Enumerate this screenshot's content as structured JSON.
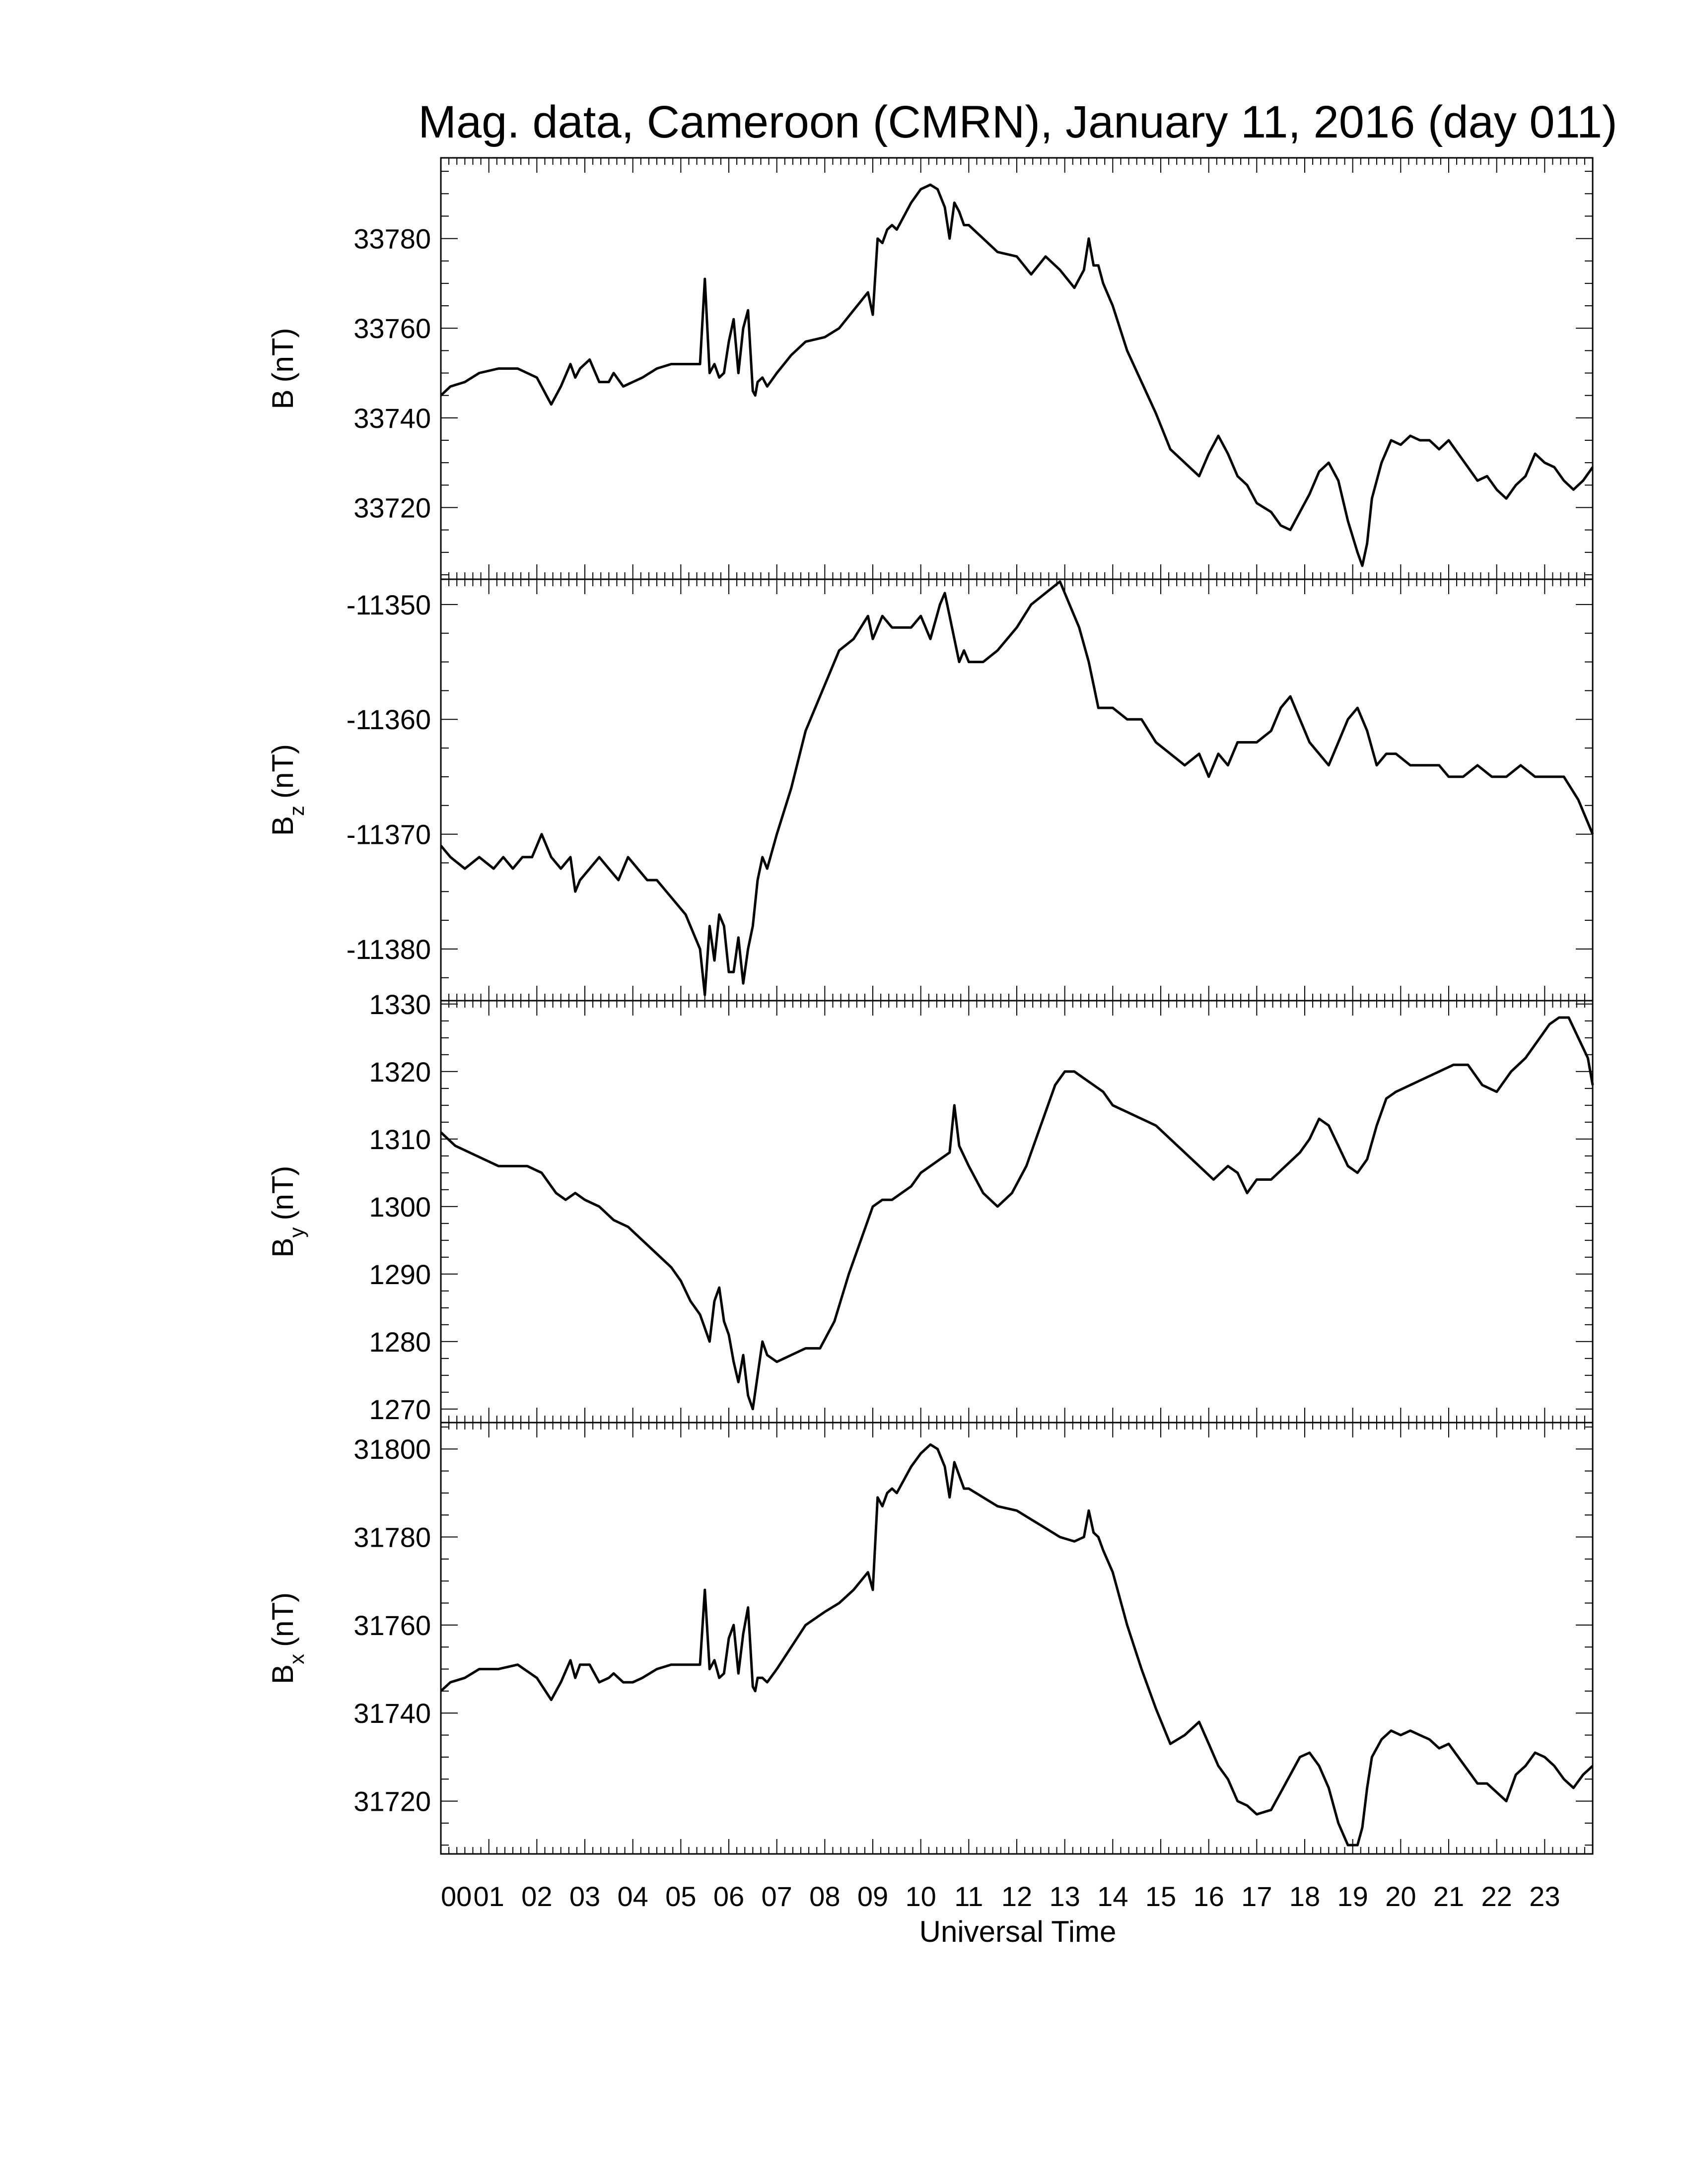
{
  "figure": {
    "title": "Mag. data, Cameroon (CMRN), January 11, 2016 (day 011)",
    "xlabel": "Universal Time"
  },
  "chart_data": [
    {
      "type": "line",
      "ylabel": "B (nT)",
      "ylabel_main": "B",
      "ylabel_sub": "",
      "ylabel_unit": "(nT)",
      "ylim": [
        33704,
        33798
      ],
      "yticks": [
        33720,
        33740,
        33760,
        33780
      ],
      "xlim": [
        0,
        24
      ],
      "series": [
        {
          "x": [
            0,
            0.2,
            0.5,
            0.8,
            1.2,
            1.6,
            2.0,
            2.3,
            2.5,
            2.7,
            2.8,
            2.9,
            3.1,
            3.3,
            3.5,
            3.6,
            3.8,
            4.0,
            4.2,
            4.5,
            4.8,
            5.0,
            5.2,
            5.4,
            5.5,
            5.6,
            5.7,
            5.8,
            5.9,
            6.0,
            6.1,
            6.2,
            6.3,
            6.4,
            6.5,
            6.55,
            6.6,
            6.7,
            6.8,
            7.0,
            7.3,
            7.6,
            8.0,
            8.3,
            8.6,
            8.9,
            9.0,
            9.1,
            9.2,
            9.3,
            9.4,
            9.5,
            9.6,
            9.8,
            10.0,
            10.2,
            10.35,
            10.5,
            10.6,
            10.7,
            10.8,
            10.9,
            11.0,
            11.3,
            11.6,
            12.0,
            12.3,
            12.6,
            12.9,
            13.2,
            13.4,
            13.5,
            13.6,
            13.7,
            13.8,
            14.0,
            14.3,
            14.6,
            14.9,
            15.2,
            15.5,
            15.8,
            16.0,
            16.2,
            16.4,
            16.6,
            16.8,
            17.0,
            17.3,
            17.5,
            17.7,
            17.9,
            18.1,
            18.3,
            18.5,
            18.7,
            18.9,
            19.1,
            19.2,
            19.3,
            19.4,
            19.6,
            19.8,
            20.0,
            20.2,
            20.4,
            20.6,
            20.8,
            21.0,
            21.2,
            21.4,
            21.6,
            21.8,
            22.0,
            22.2,
            22.4,
            22.6,
            22.8,
            23.0,
            23.2,
            23.4,
            23.6,
            23.8,
            24.0
          ],
          "y": [
            33745,
            33747,
            33748,
            33750,
            33751,
            33751,
            33749,
            33743,
            33747,
            33752,
            33749,
            33751,
            33753,
            33748,
            33748,
            33750,
            33747,
            33748,
            33749,
            33751,
            33752,
            33752,
            33752,
            33752,
            33771,
            33750,
            33752,
            33749,
            33750,
            33757,
            33762,
            33750,
            33760,
            33764,
            33746,
            33745,
            33748,
            33749,
            33747,
            33750,
            33754,
            33757,
            33758,
            33760,
            33764,
            33768,
            33763,
            33780,
            33779,
            33782,
            33783,
            33782,
            33784,
            33788,
            33791,
            33792,
            33791,
            33787,
            33780,
            33788,
            33786,
            33783,
            33783,
            33780,
            33777,
            33776,
            33772,
            33776,
            33773,
            33769,
            33773,
            33780,
            33774,
            33774,
            33770,
            33765,
            33755,
            33748,
            33741,
            33733,
            33730,
            33727,
            33732,
            33736,
            33732,
            33727,
            33725,
            33721,
            33719,
            33716,
            33715,
            33719,
            33723,
            33728,
            33730,
            33726,
            33717,
            33710,
            33707,
            33712,
            33722,
            33730,
            33735,
            33734,
            33736,
            33735,
            33735,
            33733,
            33735,
            33732,
            33729,
            33726,
            33727,
            33724,
            33722,
            33725,
            33727,
            33732,
            33730,
            33729,
            33726,
            33724,
            33726,
            33729
          ]
        }
      ]
    },
    {
      "type": "line",
      "ylabel": "Bz (nT)",
      "ylabel_main": "B",
      "ylabel_sub": "z",
      "ylabel_unit": "(nT)",
      "ylim": [
        -11384.5,
        -11347.8
      ],
      "yticks": [
        -11350,
        -11360,
        -11370,
        -11380
      ],
      "xlim": [
        0,
        24
      ],
      "series": [
        {
          "x": [
            0,
            0.2,
            0.5,
            0.8,
            1.1,
            1.3,
            1.5,
            1.7,
            1.9,
            2.1,
            2.3,
            2.5,
            2.7,
            2.8,
            2.9,
            3.1,
            3.3,
            3.5,
            3.7,
            3.9,
            4.1,
            4.3,
            4.5,
            4.7,
            4.9,
            5.1,
            5.3,
            5.4,
            5.5,
            5.6,
            5.7,
            5.8,
            5.9,
            6.0,
            6.1,
            6.2,
            6.3,
            6.4,
            6.5,
            6.6,
            6.7,
            6.8,
            7.0,
            7.3,
            7.6,
            8.0,
            8.3,
            8.6,
            8.9,
            9.0,
            9.2,
            9.4,
            9.6,
            9.8,
            10.0,
            10.2,
            10.4,
            10.5,
            10.6,
            10.7,
            10.8,
            10.9,
            11.0,
            11.3,
            11.6,
            12.0,
            12.3,
            12.6,
            12.9,
            13.1,
            13.3,
            13.5,
            13.6,
            13.7,
            13.8,
            14.0,
            14.3,
            14.6,
            14.9,
            15.2,
            15.5,
            15.8,
            16.0,
            16.2,
            16.4,
            16.6,
            16.8,
            17.0,
            17.3,
            17.5,
            17.7,
            17.9,
            18.1,
            18.3,
            18.5,
            18.7,
            18.9,
            19.1,
            19.3,
            19.5,
            19.7,
            19.9,
            20.2,
            20.5,
            20.8,
            21.0,
            21.3,
            21.6,
            21.9,
            22.2,
            22.5,
            22.8,
            23.1,
            23.4,
            23.7,
            24.0
          ],
          "y": [
            -11371,
            -11372,
            -11373,
            -11372,
            -11373,
            -11372,
            -11373,
            -11372,
            -11372,
            -11370,
            -11372,
            -11373,
            -11372,
            -11375,
            -11374,
            -11373,
            -11372,
            -11373,
            -11374,
            -11372,
            -11373,
            -11374,
            -11374,
            -11375,
            -11376,
            -11377,
            -11379,
            -11380,
            -11384,
            -11378,
            -11381,
            -11377,
            -11378,
            -11382,
            -11382,
            -11379,
            -11383,
            -11380,
            -11378,
            -11374,
            -11372,
            -11373,
            -11370,
            -11366,
            -11361,
            -11357,
            -11354,
            -11353,
            -11351,
            -11353,
            -11351,
            -11352,
            -11352,
            -11352,
            -11351,
            -11353,
            -11350,
            -11349,
            -11351,
            -11353,
            -11355,
            -11354,
            -11355,
            -11355,
            -11354,
            -11352,
            -11350,
            -11349,
            -11348,
            -11350,
            -11352,
            -11355,
            -11357,
            -11359,
            -11359,
            -11359,
            -11360,
            -11360,
            -11362,
            -11363,
            -11364,
            -11363,
            -11365,
            -11363,
            -11364,
            -11362,
            -11362,
            -11362,
            -11361,
            -11359,
            -11358,
            -11360,
            -11362,
            -11363,
            -11364,
            -11362,
            -11360,
            -11359,
            -11361,
            -11364,
            -11363,
            -11363,
            -11364,
            -11364,
            -11364,
            -11365,
            -11365,
            -11364,
            -11365,
            -11365,
            -11364,
            -11365,
            -11365,
            -11365,
            -11367,
            -11370
          ]
        }
      ]
    },
    {
      "type": "line",
      "ylabel": "By (nT)",
      "ylabel_main": "B",
      "ylabel_sub": "y",
      "ylabel_unit": "(nT)",
      "ylim": [
        1268,
        1330.5
      ],
      "yticks": [
        1270,
        1280,
        1290,
        1300,
        1310,
        1320,
        1330
      ],
      "xlim": [
        0,
        24
      ],
      "series": [
        {
          "x": [
            0,
            0.3,
            0.6,
            0.9,
            1.2,
            1.5,
            1.8,
            2.1,
            2.4,
            2.6,
            2.8,
            3.0,
            3.3,
            3.6,
            3.9,
            4.2,
            4.5,
            4.8,
            5.0,
            5.2,
            5.4,
            5.5,
            5.6,
            5.7,
            5.8,
            5.9,
            6.0,
            6.1,
            6.2,
            6.3,
            6.4,
            6.5,
            6.6,
            6.7,
            6.8,
            7.0,
            7.3,
            7.6,
            7.9,
            8.2,
            8.5,
            8.8,
            9.0,
            9.2,
            9.4,
            9.6,
            9.8,
            10.0,
            10.2,
            10.4,
            10.6,
            10.7,
            10.8,
            11.0,
            11.3,
            11.6,
            11.9,
            12.2,
            12.5,
            12.8,
            13.0,
            13.2,
            13.4,
            13.6,
            13.8,
            14.0,
            14.3,
            14.6,
            14.9,
            15.2,
            15.5,
            15.8,
            16.1,
            16.4,
            16.6,
            16.8,
            17.0,
            17.3,
            17.6,
            17.9,
            18.1,
            18.3,
            18.5,
            18.7,
            18.9,
            19.1,
            19.3,
            19.5,
            19.7,
            19.9,
            20.2,
            20.5,
            20.8,
            21.1,
            21.4,
            21.7,
            22.0,
            22.3,
            22.6,
            22.9,
            23.1,
            23.3,
            23.5,
            23.7,
            23.9,
            24.0
          ],
          "y": [
            1311,
            1309,
            1308,
            1307,
            1306,
            1306,
            1306,
            1305,
            1302,
            1301,
            1302,
            1301,
            1300,
            1298,
            1297,
            1295,
            1293,
            1291,
            1289,
            1286,
            1284,
            1282,
            1280,
            1286,
            1288,
            1283,
            1281,
            1277,
            1274,
            1278,
            1272,
            1270,
            1275,
            1280,
            1278,
            1277,
            1278,
            1279,
            1279,
            1283,
            1290,
            1296,
            1300,
            1301,
            1301,
            1302,
            1303,
            1305,
            1306,
            1307,
            1308,
            1315,
            1309,
            1306,
            1302,
            1300,
            1302,
            1306,
            1312,
            1318,
            1320,
            1320,
            1319,
            1318,
            1317,
            1315,
            1314,
            1313,
            1312,
            1310,
            1308,
            1306,
            1304,
            1306,
            1305,
            1302,
            1304,
            1304,
            1306,
            1308,
            1310,
            1313,
            1312,
            1309,
            1306,
            1305,
            1307,
            1312,
            1316,
            1317,
            1318,
            1319,
            1320,
            1321,
            1321,
            1318,
            1317,
            1320,
            1322,
            1325,
            1327,
            1328,
            1328,
            1325,
            1322,
            1318
          ]
        }
      ]
    },
    {
      "type": "line",
      "ylabel": "Bx (nT)",
      "ylabel_main": "B",
      "ylabel_sub": "x",
      "ylabel_unit": "(nT)",
      "ylim": [
        31708,
        31806
      ],
      "yticks": [
        31720,
        31740,
        31760,
        31780,
        31800
      ],
      "xlim": [
        0,
        24
      ],
      "series": [
        {
          "x": [
            0,
            0.2,
            0.5,
            0.8,
            1.2,
            1.6,
            2.0,
            2.3,
            2.5,
            2.7,
            2.8,
            2.9,
            3.1,
            3.3,
            3.5,
            3.6,
            3.8,
            4.0,
            4.2,
            4.5,
            4.8,
            5.0,
            5.2,
            5.4,
            5.5,
            5.6,
            5.7,
            5.8,
            5.9,
            6.0,
            6.1,
            6.2,
            6.3,
            6.4,
            6.5,
            6.55,
            6.6,
            6.7,
            6.8,
            7.0,
            7.3,
            7.6,
            8.0,
            8.3,
            8.6,
            8.9,
            9.0,
            9.1,
            9.2,
            9.3,
            9.4,
            9.5,
            9.6,
            9.8,
            10.0,
            10.2,
            10.35,
            10.5,
            10.6,
            10.7,
            10.8,
            10.9,
            11.0,
            11.3,
            11.6,
            12.0,
            12.3,
            12.6,
            12.9,
            13.2,
            13.4,
            13.5,
            13.6,
            13.7,
            13.8,
            14.0,
            14.3,
            14.6,
            14.9,
            15.2,
            15.5,
            15.8,
            16.0,
            16.2,
            16.4,
            16.6,
            16.8,
            17.0,
            17.3,
            17.5,
            17.7,
            17.9,
            18.1,
            18.3,
            18.5,
            18.7,
            18.9,
            19.1,
            19.2,
            19.3,
            19.4,
            19.6,
            19.8,
            20.0,
            20.2,
            20.4,
            20.6,
            20.8,
            21.0,
            21.2,
            21.4,
            21.6,
            21.8,
            22.0,
            22.2,
            22.4,
            22.6,
            22.8,
            23.0,
            23.2,
            23.4,
            23.6,
            23.8,
            24.0
          ],
          "y": [
            31745,
            31747,
            31748,
            31750,
            31750,
            31751,
            31748,
            31743,
            31747,
            31752,
            31748,
            31751,
            31751,
            31747,
            31748,
            31749,
            31747,
            31747,
            31748,
            31750,
            31751,
            31751,
            31751,
            31751,
            31768,
            31750,
            31752,
            31748,
            31749,
            31757,
            31760,
            31749,
            31758,
            31764,
            31746,
            31745,
            31748,
            31748,
            31747,
            31750,
            31755,
            31760,
            31763,
            31765,
            31768,
            31772,
            31768,
            31789,
            31787,
            31790,
            31791,
            31790,
            31792,
            31796,
            31799,
            31801,
            31800,
            31796,
            31789,
            31797,
            31794,
            31791,
            31791,
            31789,
            31787,
            31786,
            31784,
            31782,
            31780,
            31779,
            31780,
            31786,
            31781,
            31780,
            31777,
            31772,
            31760,
            31750,
            31741,
            31733,
            31735,
            31738,
            31733,
            31728,
            31725,
            31720,
            31719,
            31717,
            31718,
            31722,
            31726,
            31730,
            31731,
            31728,
            31723,
            31715,
            31710,
            31710,
            31714,
            31723,
            31730,
            31734,
            31736,
            31735,
            31736,
            31735,
            31734,
            31732,
            31733,
            31730,
            31727,
            31724,
            31724,
            31722,
            31720,
            31726,
            31728,
            31731,
            31730,
            31728,
            31725,
            31723,
            31726,
            31728
          ]
        }
      ]
    }
  ],
  "xticks": [
    "00",
    "01",
    "02",
    "03",
    "04",
    "05",
    "06",
    "07",
    "08",
    "09",
    "10",
    "11",
    "12",
    "13",
    "14",
    "15",
    "16",
    "17",
    "18",
    "19",
    "20",
    "21",
    "22",
    "23"
  ]
}
